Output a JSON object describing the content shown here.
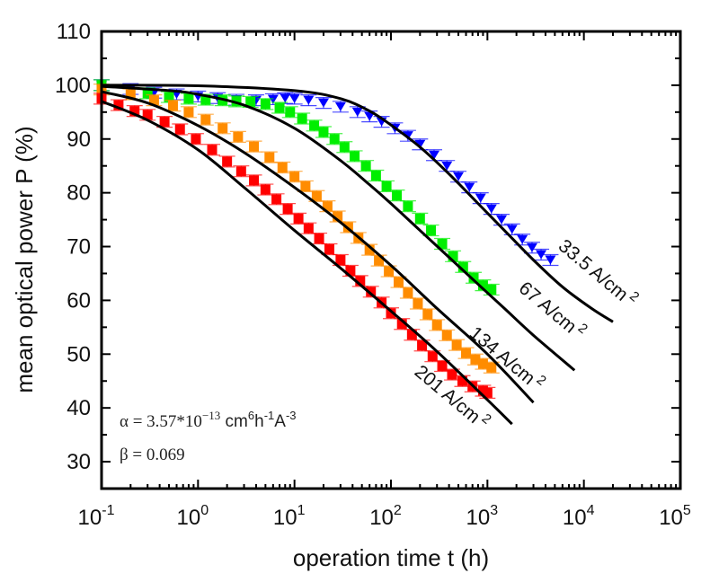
{
  "chart_data": {
    "type": "scatter",
    "title": "",
    "xlabel": "operation time t (h)",
    "ylabel": "mean optical power P (%)",
    "xscale": "log",
    "xlim": [
      0.1,
      100000
    ],
    "ylim": [
      25,
      110
    ],
    "grid": false,
    "legend": "none",
    "x_ticks": [
      {
        "base": "10",
        "exp": "-1",
        "value": 0.1
      },
      {
        "base": "10",
        "exp": "0",
        "value": 1
      },
      {
        "base": "10",
        "exp": "1",
        "value": 10
      },
      {
        "base": "10",
        "exp": "2",
        "value": 100
      },
      {
        "base": "10",
        "exp": "3",
        "value": 1000
      },
      {
        "base": "10",
        "exp": "4",
        "value": 10000
      },
      {
        "base": "10",
        "exp": "5",
        "value": 100000
      }
    ],
    "y_ticks": [
      30,
      40,
      50,
      60,
      70,
      80,
      90,
      100,
      110
    ],
    "annotations": {
      "alpha": {
        "symbol": "α",
        "text": " = 3.57*10",
        "exp": "−13",
        "unit": " cm",
        "u1": "6",
        "h": "h",
        "u2": "-1",
        "a": "A",
        "u3": "-3"
      },
      "beta": {
        "text": "β = 0.069"
      }
    },
    "series": [
      {
        "name": "33.5 A/cm2",
        "label": "33.5 A/cm",
        "label_sup": "2",
        "color": "#0000ff",
        "marker": "triangle-down",
        "points": [
          [
            0.1,
            100
          ],
          [
            0.2,
            99.3
          ],
          [
            0.35,
            98.6
          ],
          [
            0.6,
            98.3
          ],
          [
            1,
            97.9
          ],
          [
            1.6,
            97.6
          ],
          [
            2.5,
            97.3
          ],
          [
            4,
            97.2
          ],
          [
            6,
            97.4
          ],
          [
            8,
            97.6
          ],
          [
            10,
            97.5
          ],
          [
            14,
            97.2
          ],
          [
            20,
            96.7
          ],
          [
            30,
            96
          ],
          [
            45,
            95
          ],
          [
            60,
            94.2
          ],
          [
            80,
            93.2
          ],
          [
            110,
            92
          ],
          [
            150,
            90.6
          ],
          [
            200,
            89
          ],
          [
            280,
            87
          ],
          [
            380,
            85
          ],
          [
            500,
            83
          ],
          [
            650,
            81
          ],
          [
            850,
            79
          ],
          [
            1100,
            77
          ],
          [
            1400,
            75
          ],
          [
            1800,
            73.2
          ],
          [
            2300,
            71.3
          ],
          [
            2900,
            69.8
          ],
          [
            3600,
            68.5
          ],
          [
            4500,
            67.5
          ]
        ],
        "fit": [
          [
            0.1,
            100
          ],
          [
            1,
            99.9
          ],
          [
            10,
            99
          ],
          [
            30,
            97.5
          ],
          [
            60,
            95.2
          ],
          [
            100,
            92.6
          ],
          [
            200,
            88.5
          ],
          [
            400,
            83.5
          ],
          [
            800,
            78
          ],
          [
            1500,
            73
          ],
          [
            3000,
            67.5
          ],
          [
            6000,
            62.5
          ],
          [
            12000,
            58.5
          ],
          [
            20000,
            56
          ]
        ]
      },
      {
        "name": "67 A/cm2",
        "label": "67 A/cm",
        "label_sup": "2",
        "color": "#00ee00",
        "marker": "square",
        "points": [
          [
            0.1,
            100
          ],
          [
            0.3,
            98.5
          ],
          [
            0.5,
            97.8
          ],
          [
            0.8,
            97.5
          ],
          [
            1.2,
            97.3
          ],
          [
            1.8,
            97.2
          ],
          [
            2.5,
            97
          ],
          [
            3.5,
            96.9
          ],
          [
            5,
            96.5
          ],
          [
            7,
            95.8
          ],
          [
            9,
            95
          ],
          [
            12,
            93.8
          ],
          [
            16,
            92.5
          ],
          [
            20,
            91.3
          ],
          [
            26,
            90
          ],
          [
            33,
            88.5
          ],
          [
            42,
            86.8
          ],
          [
            55,
            85
          ],
          [
            70,
            83.2
          ],
          [
            90,
            81.2
          ],
          [
            115,
            79.5
          ],
          [
            150,
            77.5
          ],
          [
            200,
            75.2
          ],
          [
            260,
            73
          ],
          [
            340,
            70.5
          ],
          [
            440,
            68.2
          ],
          [
            560,
            66.2
          ],
          [
            720,
            64.2
          ],
          [
            900,
            62.8
          ],
          [
            1100,
            62
          ]
        ],
        "fit": [
          [
            0.1,
            99.8
          ],
          [
            0.5,
            99
          ],
          [
            1,
            98.3
          ],
          [
            3,
            96.3
          ],
          [
            10,
            92
          ],
          [
            30,
            86
          ],
          [
            60,
            81.5
          ],
          [
            100,
            78
          ],
          [
            200,
            73
          ],
          [
            400,
            68
          ],
          [
            800,
            63
          ],
          [
            1500,
            58.5
          ],
          [
            3000,
            53.5
          ],
          [
            8000,
            47
          ]
        ]
      },
      {
        "name": "134 A/cm2",
        "label": "134 A/cm",
        "label_sup": "2",
        "color": "#ff8c00",
        "marker": "square",
        "points": [
          [
            0.1,
            99.2
          ],
          [
            0.2,
            98.3
          ],
          [
            0.35,
            97.2
          ],
          [
            0.55,
            96.2
          ],
          [
            0.8,
            95
          ],
          [
            1.2,
            93.6
          ],
          [
            1.8,
            92
          ],
          [
            2.6,
            90.4
          ],
          [
            3.8,
            88.6
          ],
          [
            5.5,
            86.6
          ],
          [
            7.5,
            84.7
          ],
          [
            10,
            83
          ],
          [
            13,
            81.2
          ],
          [
            17,
            79.4
          ],
          [
            22,
            77.5
          ],
          [
            28,
            75.6
          ],
          [
            36,
            73.6
          ],
          [
            46,
            71.6
          ],
          [
            60,
            69.4
          ],
          [
            75,
            67.4
          ],
          [
            95,
            65.4
          ],
          [
            120,
            63.4
          ],
          [
            150,
            61.4
          ],
          [
            190,
            59.4
          ],
          [
            240,
            57.4
          ],
          [
            300,
            55.4
          ],
          [
            380,
            53.5
          ],
          [
            480,
            51.7
          ],
          [
            600,
            50.2
          ],
          [
            750,
            49
          ],
          [
            900,
            48.2
          ],
          [
            1100,
            47.5
          ]
        ],
        "fit": [
          [
            0.1,
            98.8
          ],
          [
            0.3,
            96.7
          ],
          [
            1,
            92.5
          ],
          [
            3,
            87.5
          ],
          [
            10,
            81
          ],
          [
            30,
            74.5
          ],
          [
            100,
            66.5
          ],
          [
            300,
            58.5
          ],
          [
            1000,
            50
          ],
          [
            3000,
            41
          ]
        ]
      },
      {
        "name": "201 A/cm2",
        "label": "201 A/cm",
        "label_sup": "2",
        "color": "#ff0000",
        "marker": "square",
        "points": [
          [
            0.1,
            97.5
          ],
          [
            0.15,
            96.3
          ],
          [
            0.22,
            95.2
          ],
          [
            0.3,
            94.5
          ],
          [
            0.45,
            93.2
          ],
          [
            0.65,
            91.8
          ],
          [
            0.95,
            90
          ],
          [
            1.4,
            88
          ],
          [
            2,
            85.8
          ],
          [
            2.8,
            84
          ],
          [
            3.8,
            82.3
          ],
          [
            5,
            80.6
          ],
          [
            6.5,
            78.8
          ],
          [
            8.5,
            77
          ],
          [
            11,
            75.2
          ],
          [
            14,
            73.4
          ],
          [
            18,
            71.5
          ],
          [
            23,
            69.5
          ],
          [
            30,
            67.5
          ],
          [
            38,
            65.5
          ],
          [
            48,
            63.6
          ],
          [
            62,
            61.6
          ],
          [
            80,
            59.6
          ],
          [
            100,
            57.6
          ],
          [
            130,
            55.6
          ],
          [
            165,
            53.6
          ],
          [
            210,
            51.6
          ],
          [
            270,
            49.6
          ],
          [
            340,
            47.8
          ],
          [
            430,
            46.2
          ],
          [
            550,
            45
          ],
          [
            700,
            44
          ],
          [
            900,
            43.2
          ],
          [
            1000,
            42.8
          ]
        ],
        "fit": [
          [
            0.1,
            97
          ],
          [
            0.3,
            93.5
          ],
          [
            1,
            88
          ],
          [
            3,
            81
          ],
          [
            10,
            73
          ],
          [
            30,
            66
          ],
          [
            100,
            58
          ],
          [
            300,
            50.5
          ],
          [
            1000,
            41.5
          ],
          [
            1800,
            37
          ]
        ]
      }
    ]
  }
}
